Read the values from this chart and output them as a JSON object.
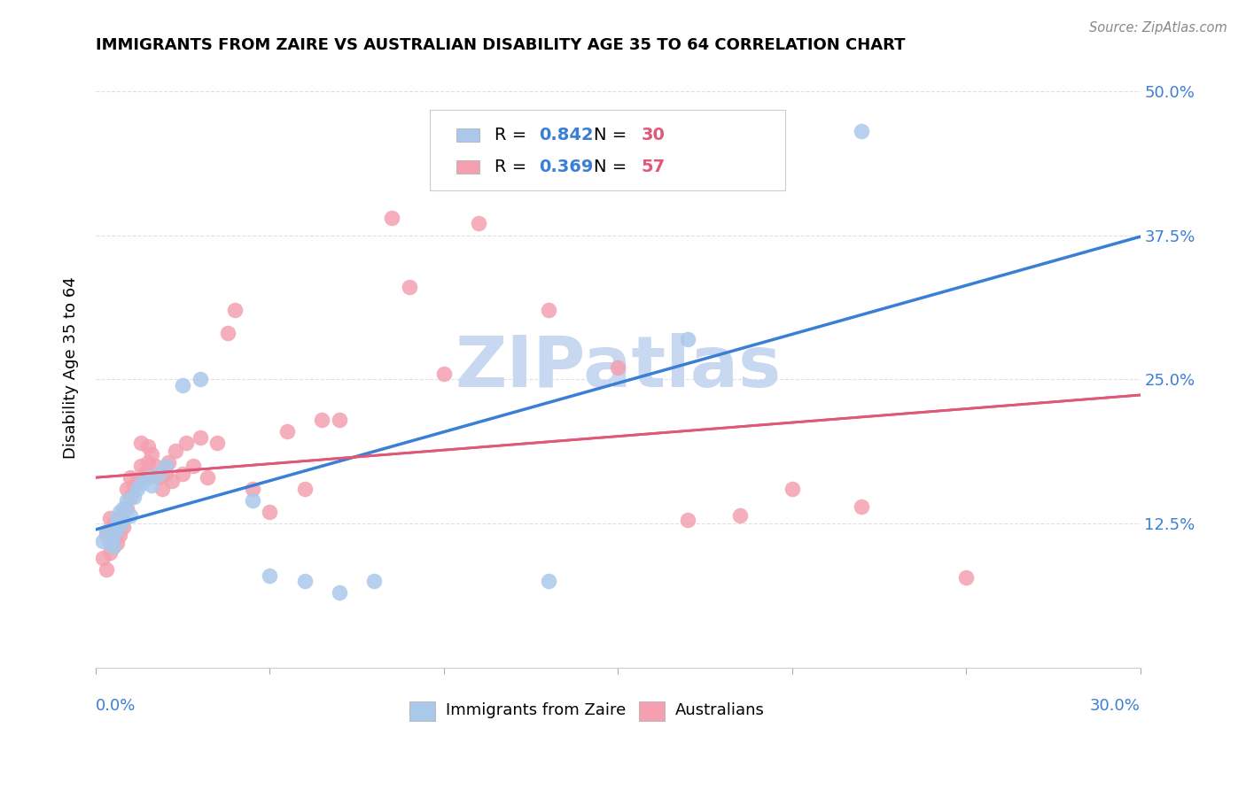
{
  "title": "IMMIGRANTS FROM ZAIRE VS AUSTRALIAN DISABILITY AGE 35 TO 64 CORRELATION CHART",
  "source": "Source: ZipAtlas.com",
  "ylabel": "Disability Age 35 to 64",
  "ytick_labels": [
    "",
    "12.5%",
    "25.0%",
    "37.5%",
    "50.0%"
  ],
  "ytick_values": [
    0.0,
    0.125,
    0.25,
    0.375,
    0.5
  ],
  "xlim": [
    0.0,
    0.3
  ],
  "ylim": [
    0.0,
    0.52
  ],
  "legend_r_color": "#3a7fd5",
  "legend_n_color": "#e05878",
  "watermark": "ZIPatlas",
  "watermark_color": "#c8d8f0",
  "grid_color": "#e0e0e0",
  "blue_scatter_color": "#aac8ea",
  "pink_scatter_color": "#f4a0b0",
  "blue_line_color": "#3a7fd5",
  "pink_line_color": "#e05878",
  "blue_label": "Immigrants from Zaire",
  "pink_label": "Australians",
  "blue_R": "0.842",
  "blue_N": "30",
  "pink_R": "0.369",
  "pink_N": "57",
  "blue_points_x": [
    0.002,
    0.003,
    0.004,
    0.005,
    0.005,
    0.006,
    0.006,
    0.007,
    0.007,
    0.008,
    0.008,
    0.009,
    0.01,
    0.011,
    0.012,
    0.013,
    0.015,
    0.016,
    0.018,
    0.02,
    0.025,
    0.03,
    0.045,
    0.05,
    0.06,
    0.07,
    0.08,
    0.13,
    0.17,
    0.22
  ],
  "blue_points_y": [
    0.11,
    0.118,
    0.108,
    0.105,
    0.115,
    0.12,
    0.13,
    0.125,
    0.135,
    0.128,
    0.138,
    0.145,
    0.132,
    0.148,
    0.155,
    0.16,
    0.165,
    0.158,
    0.168,
    0.175,
    0.245,
    0.25,
    0.145,
    0.08,
    0.075,
    0.065,
    0.075,
    0.075,
    0.285,
    0.465
  ],
  "pink_points_x": [
    0.002,
    0.003,
    0.003,
    0.004,
    0.004,
    0.005,
    0.005,
    0.006,
    0.006,
    0.007,
    0.007,
    0.008,
    0.008,
    0.009,
    0.009,
    0.01,
    0.01,
    0.011,
    0.012,
    0.013,
    0.013,
    0.014,
    0.015,
    0.015,
    0.016,
    0.017,
    0.018,
    0.019,
    0.02,
    0.021,
    0.022,
    0.023,
    0.025,
    0.026,
    0.028,
    0.03,
    0.032,
    0.035,
    0.038,
    0.04,
    0.045,
    0.05,
    0.055,
    0.06,
    0.065,
    0.07,
    0.085,
    0.09,
    0.1,
    0.11,
    0.13,
    0.15,
    0.17,
    0.185,
    0.2,
    0.22,
    0.25
  ],
  "pink_points_y": [
    0.095,
    0.085,
    0.115,
    0.1,
    0.13,
    0.105,
    0.125,
    0.118,
    0.108,
    0.128,
    0.115,
    0.122,
    0.135,
    0.138,
    0.155,
    0.148,
    0.165,
    0.158,
    0.162,
    0.175,
    0.195,
    0.168,
    0.178,
    0.192,
    0.185,
    0.175,
    0.165,
    0.155,
    0.168,
    0.178,
    0.162,
    0.188,
    0.168,
    0.195,
    0.175,
    0.2,
    0.165,
    0.195,
    0.29,
    0.31,
    0.155,
    0.135,
    0.205,
    0.155,
    0.215,
    0.215,
    0.39,
    0.33,
    0.255,
    0.385,
    0.31,
    0.26,
    0.128,
    0.132,
    0.155,
    0.14,
    0.078
  ]
}
